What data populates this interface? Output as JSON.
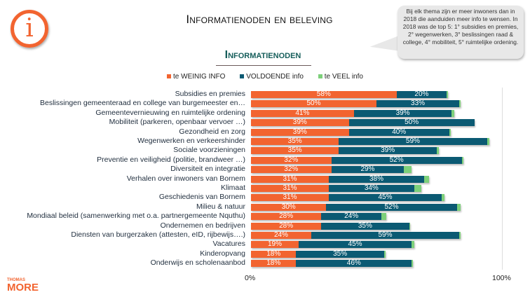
{
  "header": {
    "title": "Informatienoden en beleving",
    "subtitle": "Informatienoden",
    "info_icon": "info-circle-icon"
  },
  "callout": {
    "text": "Bij elk thema zijn er meer inwoners dan in 2018 die aanduiden meer info te wensen. In 2018 was de top 5: 1° subsidies en premies, 2° wegenwerken, 3° beslissingen raad & college, 4° mobiliteit, 5° ruimtelijke ordening."
  },
  "logo": {
    "line1": "THOMAS",
    "line2": "MORE"
  },
  "chart_data": {
    "type": "bar",
    "orientation": "horizontal",
    "stacked": true,
    "legend_position": "top",
    "xlim": [
      0,
      100
    ],
    "x_ticks": [
      "0%",
      "100%"
    ],
    "categories": [
      "Subsidies en premies",
      "Beslissingen gemeenteraad en college van burgemeester en…",
      "Gemeentevernieuwing en ruimtelijke ordening",
      "Mobiliteit (parkeren, openbaar vervoer …)",
      "Gezondheid en zorg",
      "Wegenwerken en verkeershinder",
      "Sociale voorzieningen",
      "Preventie en veiligheid (politie, brandweer …)",
      "Diversiteit en integratie",
      "Verhalen over inwoners van Bornem",
      "Klimaat",
      "Geschiedenis van Bornem",
      "Milieu & natuur",
      "Mondiaal beleid (samenwerking met o.a. partnergemeente Nquthu)",
      "Ondernemen en bedrijven",
      "Diensten van burgerzaken (attesten, eID, rijbewijs….)",
      "Vacatures",
      "Kinderopvang",
      "Onderwijs en scholenaanbod"
    ],
    "series": [
      {
        "name": "te WEINIG INFO",
        "color": "#f26430",
        "values": [
          58,
          50,
          41,
          39,
          39,
          35,
          35,
          32,
          32,
          31,
          31,
          31,
          30,
          28,
          28,
          24,
          19,
          18,
          18
        ]
      },
      {
        "name": "VOLDOENDE info",
        "color": "#0b5a73",
        "values": [
          20,
          33,
          39,
          50,
          40,
          59,
          39,
          52,
          29,
          38,
          34,
          45,
          52,
          24,
          35,
          59,
          45,
          35,
          46
        ]
      },
      {
        "name": "te VEEL info",
        "color": "#7dd07a",
        "values": [
          0.5,
          0.5,
          1,
          0,
          0.5,
          1,
          1,
          0.5,
          3,
          2,
          3,
          1,
          1.5,
          2,
          0.5,
          0.5,
          1,
          0.5,
          0.5
        ]
      }
    ]
  }
}
